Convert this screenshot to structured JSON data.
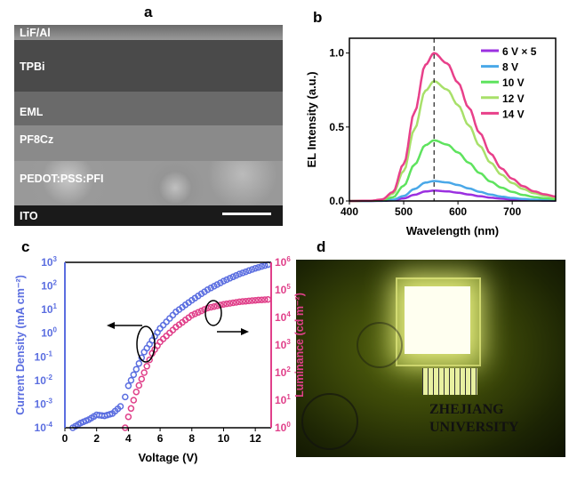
{
  "panels": {
    "a": "a",
    "b": "b",
    "c": "c",
    "d": "d"
  },
  "panel_a": {
    "layers": [
      "LiF/Al",
      "TPBi",
      "EML",
      "PF8Cz",
      "PEDOT:PSS:PFI",
      "ITO"
    ]
  },
  "panel_d": {
    "text_line1": "ZHEJIANG",
    "text_line2": "UNIVERSITY"
  },
  "chart_data": [
    {
      "panel": "b",
      "type": "line",
      "xlabel": "Wavelength (nm)",
      "ylabel": "EL Intensity (a.u.)",
      "xlim": [
        400,
        780
      ],
      "ylim": [
        0,
        1.1
      ],
      "xticks": [
        400,
        500,
        600,
        700
      ],
      "yticks": [
        "0.0",
        "0.5",
        "1.0"
      ],
      "legend_position": "top-right",
      "reference_line_x": 556,
      "x": [
        400,
        440,
        460,
        480,
        500,
        520,
        540,
        556,
        580,
        600,
        620,
        640,
        660,
        680,
        700,
        720,
        740,
        760,
        780
      ],
      "series": [
        {
          "name": "6 V × 5",
          "color": "#9b30e0",
          "peak": 0.07
        },
        {
          "name": "8 V",
          "color": "#4aa8e8",
          "peak": 0.135
        },
        {
          "name": "10 V",
          "color": "#5ee35e",
          "peak": 0.41
        },
        {
          "name": "12 V",
          "color": "#a8e06a",
          "peak": 0.81
        },
        {
          "name": "14 V",
          "color": "#e8408a",
          "peak": 1.0
        }
      ],
      "normalized_shape": [
        0,
        0.002,
        0.01,
        0.06,
        0.25,
        0.6,
        0.92,
        1.0,
        0.93,
        0.8,
        0.63,
        0.46,
        0.32,
        0.22,
        0.15,
        0.1,
        0.065,
        0.045,
        0.03
      ]
    },
    {
      "panel": "c",
      "type": "scatter",
      "xlabel": "Voltage (V)",
      "ylabel_left": "Current Density (mA cm⁻²)",
      "ylabel_right": "Luminance (cd m⁻²)",
      "xlim": [
        0,
        13
      ],
      "xticks": [
        "0",
        "2",
        "4",
        "6",
        "8",
        "10",
        "12"
      ],
      "ylim_left": [
        0.0001,
        1000
      ],
      "ylim_right": [
        1,
        1000000
      ],
      "yscale": "log",
      "yticks_left": [
        -4,
        -3,
        -2,
        -1,
        0,
        1,
        2,
        3
      ],
      "yticks_right": [
        0,
        1,
        2,
        3,
        4,
        5,
        6
      ],
      "series": [
        {
          "name": "Current Density",
          "axis": "left",
          "color": "#5b6ee0",
          "x": [
            0.5,
            1,
            1.5,
            2,
            2.5,
            3,
            3.5,
            3.8,
            4,
            4.5,
            5,
            5.5,
            6,
            7,
            8,
            9,
            10,
            11,
            12,
            12.8
          ],
          "y": [
            0.0001,
            0.00016,
            0.00022,
            0.00035,
            0.00032,
            0.0004,
            0.0008,
            0.002,
            0.006,
            0.03,
            0.16,
            0.5,
            1.6,
            8,
            25,
            70,
            160,
            320,
            560,
            800
          ]
        },
        {
          "name": "Luminance",
          "axis": "right",
          "color": "#e0408a",
          "x": [
            3.8,
            4,
            4.5,
            5,
            5.5,
            6,
            7,
            8,
            9,
            10,
            11,
            12,
            12.8
          ],
          "y": [
            1,
            2.5,
            20,
            100,
            500,
            1300,
            4500,
            12000,
            22000,
            30000,
            37000,
            42000,
            45000
          ]
        }
      ]
    }
  ]
}
